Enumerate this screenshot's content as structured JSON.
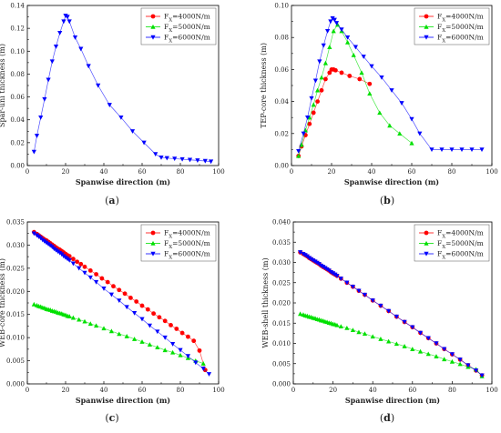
{
  "figure": {
    "panels": [
      {
        "letter": "(a)"
      },
      {
        "letter": "(b)"
      },
      {
        "letter": "(c)"
      },
      {
        "letter": "(d)"
      }
    ]
  },
  "chart_data": [
    {
      "type": "line",
      "xlabel": "Spanwise direction (m)",
      "ylabel": "Spar-uni thickness (m)",
      "xlim": [
        0,
        100
      ],
      "ylim": [
        0,
        0.14
      ],
      "xticks": [
        0,
        20,
        40,
        60,
        80,
        100
      ],
      "yticks": [
        0.0,
        0.02,
        0.04,
        0.06,
        0.08,
        0.1,
        0.12,
        0.14
      ],
      "ytick_labels": [
        "0.00",
        "0.02",
        "0.04",
        "0.06",
        "0.08",
        "0.10",
        "0.12",
        "0.14"
      ],
      "legend": {
        "position": "top-right",
        "entries": [
          "F_X=4000N/m",
          "F_X=5000N/m",
          "F_X=6000N/m"
        ]
      },
      "series": [
        {
          "name": "F_X=4000N/m",
          "color": "#ff0000",
          "marker": "circle",
          "x": [],
          "y": []
        },
        {
          "name": "F_X=5000N/m",
          "color": "#00e000",
          "marker": "triangle-up",
          "x": [],
          "y": []
        },
        {
          "name": "F_X=6000N/m",
          "color": "#0000ff",
          "marker": "triangle-down",
          "x": [
            3.5,
            5,
            7,
            9,
            11,
            13,
            15,
            17,
            19,
            20,
            21,
            22,
            25,
            28,
            32,
            37,
            43,
            49,
            55,
            61,
            67,
            70,
            73,
            77,
            81,
            85,
            89,
            93,
            96
          ],
          "y": [
            0.012,
            0.026,
            0.042,
            0.058,
            0.075,
            0.091,
            0.104,
            0.116,
            0.126,
            0.131,
            0.13,
            0.126,
            0.112,
            0.102,
            0.087,
            0.07,
            0.053,
            0.042,
            0.03,
            0.02,
            0.01,
            0.007,
            0.0065,
            0.006,
            0.0055,
            0.005,
            0.0045,
            0.004,
            0.0035
          ]
        }
      ]
    },
    {
      "type": "line",
      "xlabel": "Spanwise direction (m)",
      "ylabel": "TEP-core thickness (m)",
      "xlim": [
        0,
        100
      ],
      "ylim": [
        0,
        0.1
      ],
      "xticks": [
        0,
        20,
        40,
        60,
        80,
        100
      ],
      "yticks": [
        0.0,
        0.02,
        0.04,
        0.06,
        0.08,
        0.1
      ],
      "ytick_labels": [
        "0.00",
        "0.02",
        "0.04",
        "0.06",
        "0.08",
        "0.10"
      ],
      "legend": {
        "position": "top-right",
        "entries": [
          "F_X=4000N/m",
          "F_X=5000N/m",
          "F_X=6000N/m"
        ]
      },
      "series": [
        {
          "name": "F_X=4000N/m",
          "color": "#ff0000",
          "marker": "circle",
          "x": [
            3.5,
            5,
            7,
            9,
            11,
            13,
            15,
            17,
            19,
            20,
            21,
            22,
            25,
            29,
            34,
            39
          ],
          "y": [
            0.006,
            0.012,
            0.019,
            0.026,
            0.033,
            0.04,
            0.047,
            0.054,
            0.058,
            0.06,
            0.06,
            0.0595,
            0.058,
            0.056,
            0.054,
            0.051
          ]
        },
        {
          "name": "F_X=5000N/m",
          "color": "#00e000",
          "marker": "triangle-up",
          "x": [
            3.5,
            5,
            7,
            9,
            11,
            13,
            15,
            17,
            19,
            21,
            23,
            25,
            28,
            31,
            35,
            39,
            44,
            49,
            54,
            60
          ],
          "y": [
            0.006,
            0.013,
            0.022,
            0.03,
            0.038,
            0.047,
            0.055,
            0.064,
            0.074,
            0.084,
            0.088,
            0.084,
            0.077,
            0.069,
            0.058,
            0.045,
            0.033,
            0.025,
            0.02,
            0.014
          ]
        },
        {
          "name": "F_X=6000N/m",
          "color": "#0000ff",
          "marker": "triangle-down",
          "x": [
            3.5,
            6,
            8,
            10,
            12,
            14,
            16,
            18,
            19.5,
            20.5,
            21.5,
            22.5,
            25,
            28,
            32,
            36,
            40,
            45,
            50,
            55,
            60,
            64,
            70,
            75,
            80,
            85,
            90,
            95
          ],
          "y": [
            0.009,
            0.02,
            0.03,
            0.042,
            0.053,
            0.065,
            0.075,
            0.084,
            0.09,
            0.092,
            0.091,
            0.089,
            0.085,
            0.08,
            0.074,
            0.068,
            0.062,
            0.055,
            0.047,
            0.039,
            0.029,
            0.02,
            0.01,
            0.01,
            0.01,
            0.01,
            0.01,
            0.01
          ]
        }
      ]
    },
    {
      "type": "line",
      "xlabel": "Spanwise direction (m)",
      "ylabel": "WEB-core thickness (m)",
      "xlim": [
        0,
        100
      ],
      "ylim": [
        0,
        0.035
      ],
      "xticks": [
        0,
        20,
        40,
        60,
        80,
        100
      ],
      "yticks": [
        0.0,
        0.005,
        0.01,
        0.015,
        0.02,
        0.025,
        0.03,
        0.035
      ],
      "ytick_labels": [
        "0.000",
        "0.005",
        "0.010",
        "0.015",
        "0.020",
        "0.025",
        "0.030",
        "0.035"
      ],
      "legend": {
        "position": "top-right",
        "entries": [
          "F_X=4000N/m",
          "F_X=5000N/m",
          "F_X=6000N/m"
        ]
      },
      "series": [
        {
          "name": "F_X=4000N/m",
          "color": "#ff0000",
          "marker": "circle",
          "x": [
            3.5,
            5,
            6,
            7,
            8,
            9,
            10,
            11,
            12,
            13,
            14,
            15,
            16,
            17,
            18,
            19,
            20,
            21,
            22,
            24,
            26,
            28,
            30,
            33,
            36,
            39,
            42,
            45,
            48,
            51,
            54,
            57,
            60,
            63,
            66,
            69,
            72,
            75,
            78,
            81,
            84,
            87,
            90,
            93
          ],
          "y": [
            0.0328,
            0.0324,
            0.0321,
            0.0318,
            0.0315,
            0.0312,
            0.031,
            0.0307,
            0.0304,
            0.0301,
            0.0298,
            0.0295,
            0.0292,
            0.029,
            0.0287,
            0.0284,
            0.0281,
            0.0278,
            0.0276,
            0.027,
            0.0264,
            0.0259,
            0.0253,
            0.0245,
            0.0237,
            0.0228,
            0.022,
            0.0211,
            0.0203,
            0.0195,
            0.0186,
            0.0178,
            0.0169,
            0.0161,
            0.0152,
            0.0144,
            0.0136,
            0.0127,
            0.0119,
            0.011,
            0.0102,
            0.0093,
            0.0072,
            0.003
          ]
        },
        {
          "name": "F_X=5000N/m",
          "color": "#00e000",
          "marker": "triangle-up",
          "x": [
            3.5,
            5,
            6,
            7,
            8,
            9,
            10,
            11,
            12,
            13,
            14,
            15,
            16,
            17,
            18,
            19,
            20,
            21,
            22,
            24,
            27,
            30,
            33,
            36,
            40,
            44,
            48,
            52,
            56,
            60,
            64,
            68,
            72,
            76,
            80,
            84,
            88,
            92
          ],
          "y": [
            0.0172,
            0.017,
            0.0168,
            0.0167,
            0.0165,
            0.0164,
            0.0162,
            0.0161,
            0.016,
            0.0158,
            0.0157,
            0.0156,
            0.0154,
            0.0153,
            0.0152,
            0.015,
            0.0149,
            0.0147,
            0.0146,
            0.0143,
            0.0139,
            0.0135,
            0.013,
            0.0126,
            0.012,
            0.0114,
            0.0108,
            0.0103,
            0.0097,
            0.0091,
            0.0085,
            0.0079,
            0.0073,
            0.0068,
            0.0062,
            0.0056,
            0.005,
            0.0044
          ]
        },
        {
          "name": "F_X=6000N/m",
          "color": "#0000ff",
          "marker": "triangle-down",
          "x": [
            3.5,
            5,
            6,
            7,
            8,
            9,
            10,
            11,
            12,
            13,
            14,
            15,
            16,
            17,
            18,
            19,
            20,
            21,
            22,
            24,
            27,
            30,
            33,
            36,
            40,
            44,
            48,
            52,
            56,
            60,
            64,
            68,
            72,
            76,
            80,
            84,
            88,
            92,
            95
          ],
          "y": [
            0.0325,
            0.0321,
            0.0318,
            0.0315,
            0.0311,
            0.0308,
            0.0305,
            0.0302,
            0.0299,
            0.0296,
            0.0292,
            0.0289,
            0.0286,
            0.0283,
            0.028,
            0.0276,
            0.0273,
            0.027,
            0.0267,
            0.026,
            0.025,
            0.024,
            0.023,
            0.022,
            0.0206,
            0.0193,
            0.018,
            0.0166,
            0.0153,
            0.014,
            0.0126,
            0.0113,
            0.01,
            0.0086,
            0.0073,
            0.006,
            0.0046,
            0.0033,
            0.0021
          ]
        }
      ]
    },
    {
      "type": "line",
      "xlabel": "Spanwise direction (m)",
      "ylabel": "WEB-shell thickness (m)",
      "xlim": [
        0,
        100
      ],
      "ylim": [
        0,
        0.04
      ],
      "xticks": [
        0,
        20,
        40,
        60,
        80,
        100
      ],
      "yticks": [
        0.0,
        0.005,
        0.01,
        0.015,
        0.02,
        0.025,
        0.03,
        0.035,
        0.04
      ],
      "ytick_labels": [
        "0.000",
        "0.005",
        "0.010",
        "0.015",
        "0.020",
        "0.025",
        "0.030",
        "0.035",
        "0.040"
      ],
      "legend": {
        "position": "top-right",
        "entries": [
          "F_X=4000N/m",
          "F_X=5000N/m",
          "F_X=6000N/m"
        ]
      },
      "series": [
        {
          "name": "F_X=4000N/m",
          "color": "#ff0000",
          "marker": "circle",
          "x": [
            3.5,
            5,
            6,
            7,
            8,
            9,
            10,
            11,
            12,
            13,
            14,
            15,
            16,
            17,
            18,
            19,
            20,
            21,
            22,
            24,
            27,
            30,
            33,
            36,
            40,
            44,
            48,
            52,
            56,
            60,
            64,
            68,
            72,
            76,
            80,
            84,
            88,
            92,
            95
          ],
          "y": [
            0.0325,
            0.0321,
            0.0318,
            0.0315,
            0.0311,
            0.0308,
            0.0305,
            0.0302,
            0.0299,
            0.0296,
            0.0292,
            0.0289,
            0.0286,
            0.0283,
            0.028,
            0.0276,
            0.0273,
            0.027,
            0.0267,
            0.026,
            0.025,
            0.024,
            0.023,
            0.022,
            0.0206,
            0.0193,
            0.018,
            0.0166,
            0.0153,
            0.014,
            0.0126,
            0.0113,
            0.01,
            0.0086,
            0.0073,
            0.006,
            0.0046,
            0.0033,
            0.0021
          ]
        },
        {
          "name": "F_X=5000N/m",
          "color": "#00e000",
          "marker": "triangle-up",
          "x": [
            3.5,
            5,
            6,
            7,
            8,
            9,
            10,
            11,
            12,
            13,
            14,
            15,
            16,
            17,
            18,
            19,
            20,
            21,
            22,
            24,
            27,
            30,
            33,
            36,
            40,
            44,
            48,
            52,
            56,
            60,
            64,
            68,
            72,
            76,
            80,
            84,
            88,
            92,
            95
          ],
          "y": [
            0.0173,
            0.0171,
            0.0169,
            0.0168,
            0.0166,
            0.0165,
            0.0163,
            0.0162,
            0.016,
            0.0159,
            0.0157,
            0.0156,
            0.0154,
            0.0153,
            0.0151,
            0.015,
            0.0148,
            0.0147,
            0.0145,
            0.0142,
            0.0138,
            0.0133,
            0.0128,
            0.0124,
            0.0117,
            0.0111,
            0.0105,
            0.0099,
            0.0093,
            0.0086,
            0.008,
            0.0074,
            0.0068,
            0.0061,
            0.0055,
            0.0049,
            0.0042,
            0.0036,
            0.0019
          ]
        },
        {
          "name": "F_X=6000N/m",
          "color": "#0000ff",
          "marker": "triangle-down",
          "x": [
            3.5,
            5,
            6,
            7,
            8,
            9,
            10,
            11,
            12,
            13,
            14,
            15,
            16,
            17,
            18,
            19,
            20,
            21,
            22,
            24,
            27,
            30,
            33,
            36,
            40,
            44,
            48,
            52,
            56,
            60,
            64,
            68,
            72,
            76,
            80,
            84,
            88,
            92,
            95
          ],
          "y": [
            0.0325,
            0.0321,
            0.0318,
            0.0315,
            0.0311,
            0.0308,
            0.0305,
            0.0302,
            0.0299,
            0.0296,
            0.0292,
            0.0289,
            0.0286,
            0.0283,
            0.028,
            0.0276,
            0.0273,
            0.027,
            0.0267,
            0.026,
            0.025,
            0.024,
            0.023,
            0.022,
            0.0206,
            0.0193,
            0.018,
            0.0166,
            0.0153,
            0.014,
            0.0126,
            0.0113,
            0.01,
            0.0086,
            0.0073,
            0.006,
            0.0046,
            0.0033,
            0.0021
          ]
        }
      ]
    }
  ]
}
